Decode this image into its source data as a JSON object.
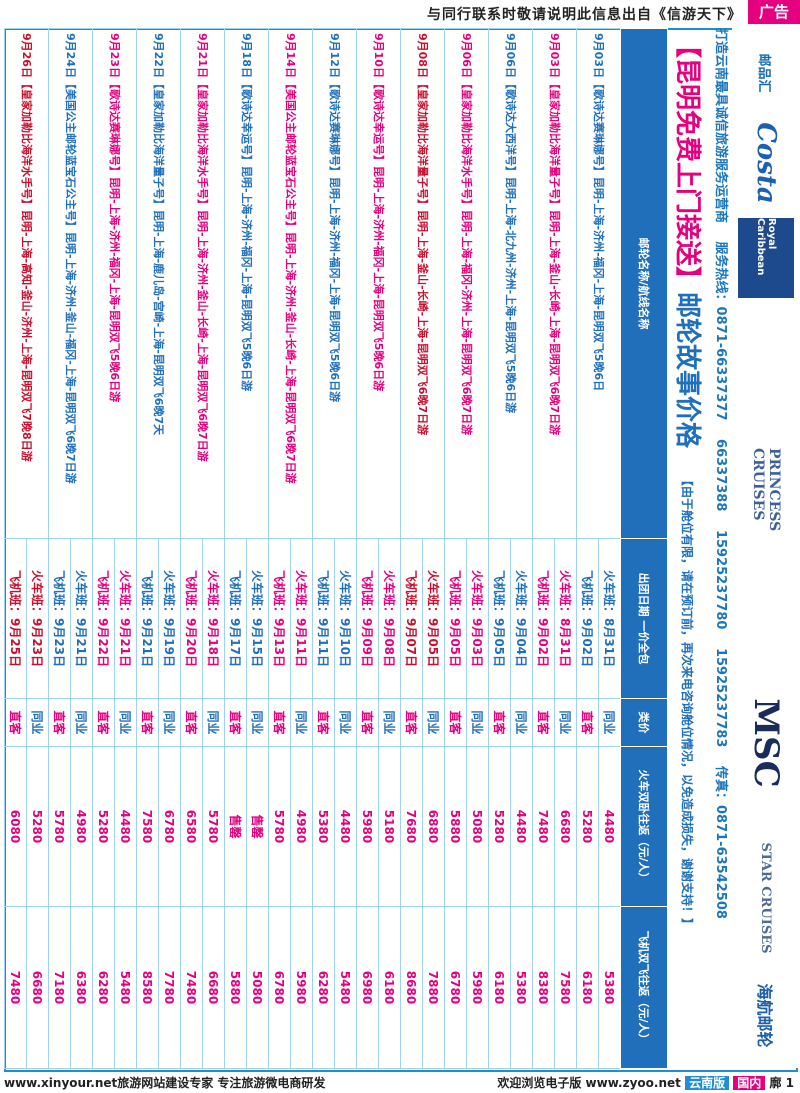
{
  "top_notice": "与同行联系时敬请说明此信息出自《信游天下》",
  "ad_label": "广告",
  "brands": {
    "youpinhui": "邮品汇",
    "costa": "Costa",
    "rc": "Royal Caribbean",
    "princess": "PRINCESS CRUISES",
    "msc": "MSC",
    "star": "STAR CRUISES",
    "hainan": "海航邮轮"
  },
  "contact": {
    "line1": "打造云南最具诚信旅游服务运营商",
    "service": "服务热线：0871-66337377",
    "p1": "66337388",
    "p2": "15925237780",
    "p3": "15925237783",
    "fax": "传真：0871-63542508"
  },
  "headline": {
    "part1": "【昆明免费上门接送】",
    "part2": "邮轮故事价格",
    "note": "【由于舱位有限，请在预订前，再次来电咨询舱位情况，以免造成损失，谢谢支持！】"
  },
  "table": {
    "headers": [
      "邮轮名称/航线名称",
      "出团日期 一价全包",
      "类价",
      "火车双卧往返（元/人）",
      "飞机双飞往返（元/人）"
    ],
    "rows": [
      {
        "name": "9月03日【歌诗达赛琳娜号】昆明-上海-济州-福冈-上海-昆明双飞5晚6日",
        "color": "c-blue",
        "dates": [
          "火车班：8月31日",
          "飞机班：9月02日"
        ],
        "train": [
          "4480",
          "5280"
        ],
        "plane": [
          "5380",
          "6180"
        ]
      },
      {
        "name": "9月03日【皇家加勒比海洋量子号】昆明-上海-釜山-长崎-上海-昆明双飞6晚7日游",
        "color": "c-pink",
        "dates": [
          "火车班：8月31日",
          "飞机班：9月02日"
        ],
        "train": [
          "6680",
          "7480"
        ],
        "plane": [
          "7580",
          "8380"
        ]
      },
      {
        "name": "9月06日【歌诗达大西洋号】昆明-上海-北九州-济州-上海-昆明双飞5晚6日游",
        "color": "c-blue",
        "dates": [
          "火车班：9月04日",
          "飞机班：9月05日"
        ],
        "train": [
          "4480",
          "5280"
        ],
        "plane": [
          "5380",
          "6180"
        ]
      },
      {
        "name": "9月06日【皇家加勒比海洋水手号】昆明-上海-福冈-济州-上海-昆明双飞6晚7日游",
        "color": "c-pink",
        "dates": [
          "火车班：9月03日",
          "飞机班：9月05日"
        ],
        "train": [
          "5080",
          "5880"
        ],
        "plane": [
          "5980",
          "6780"
        ]
      },
      {
        "name": "9月08日【皇家加勒比海洋量子号】昆明-上海-釜山-长崎-上海-昆明双飞6晚7日游",
        "color": "c-red",
        "dates": [
          "火车班：9月05日",
          "飞机班：9月07日"
        ],
        "train": [
          "6880",
          "7680"
        ],
        "plane": [
          "7880",
          "8680"
        ]
      },
      {
        "name": "9月10日【歌诗达幸运号】昆明-上海-济州-福冈-上海-昆明双飞5晚6日游",
        "color": "c-pink",
        "dates": [
          "火车班：9月08日",
          "飞机班：9月09日"
        ],
        "train": [
          "5180",
          "5980"
        ],
        "plane": [
          "6180",
          "6980"
        ]
      },
      {
        "name": "9月12日【歌诗达赛琳娜号】昆明-上海-济州-福冈-上海-昆明双飞5晚6日游",
        "color": "c-blue",
        "dates": [
          "火车班：9月10日",
          "飞机班：9月11日"
        ],
        "train": [
          "4480",
          "5380"
        ],
        "plane": [
          "5480",
          "6280"
        ]
      },
      {
        "name": "9月14日【美国公主邮轮蓝宝石公主号】昆明-上海-济州-釜山-长崎-上海-昆明双飞6晚7日游",
        "color": "c-pink",
        "dates": [
          "火车班：9月11日",
          "飞机班：9月13日"
        ],
        "train": [
          "4980",
          "5780"
        ],
        "plane": [
          "5980",
          "6780"
        ]
      },
      {
        "name": "9月18日【歌诗达幸运号】昆明-上海-济州-福冈-上海-昆明双飞5晚6日游",
        "color": "c-blue",
        "dates": [
          "火车班：9月15日",
          "飞机班：9月17日"
        ],
        "train": [
          "售罄",
          "售罄"
        ],
        "plane": [
          "5080",
          "5880"
        ]
      },
      {
        "name": "9月21日【皇家加勒比海洋水手号】昆明-上海-济州-釜山-长崎-上海-昆明双飞6晚7日游",
        "color": "c-pink",
        "dates": [
          "火车班：9月18日",
          "飞机班：9月20日"
        ],
        "train": [
          "5780",
          "6580"
        ],
        "plane": [
          "6680",
          "7480"
        ]
      },
      {
        "name": "9月22日【皇家加勒比海洋量子号】昆明-上海-鹿儿岛-宫崎-上海-昆明双飞6晚7天",
        "color": "c-blue",
        "dates": [
          "火车班：9月19日",
          "飞机班：9月21日"
        ],
        "train": [
          "6780",
          "7580"
        ],
        "plane": [
          "7780",
          "8580"
        ]
      },
      {
        "name": "9月23日【歌诗达赛琳娜号】昆明-上海-济州-福冈-上海-昆明双飞5晚6日游",
        "color": "c-pink",
        "dates": [
          "火车班：9月21日",
          "飞机班：9月22日"
        ],
        "train": [
          "4480",
          "5280"
        ],
        "plane": [
          "5480",
          "6280"
        ]
      },
      {
        "name": "9月24日【美国公主邮轮蓝宝石公主号】昆明-上海-济州-釜山-福冈-上海-昆明双飞6晚7日游",
        "color": "c-blue",
        "dates": [
          "火车班：9月21日",
          "飞机班：9月23日"
        ],
        "train": [
          "4980",
          "5780"
        ],
        "plane": [
          "6380",
          "7180"
        ]
      },
      {
        "name": "9月26日【皇家加勒比海洋水手号】昆明-上海-高知-釜山-济州-上海-昆明双飞7晚8日游",
        "color": "c-red",
        "dates": [
          "火车班：9月23日",
          "飞机班：9月25日"
        ],
        "train": [
          "5280",
          "6080"
        ],
        "plane": [
          "6680",
          "7480"
        ]
      }
    ],
    "price_type": [
      "同业",
      "直客"
    ]
  },
  "footer": {
    "left": "www.xinyour.net旅游网站建设专家  专注旅游微电商研发",
    "right_pre": "欢迎浏览电子版  www.zyoo.net",
    "yn": "云南版",
    "gn": "国内",
    "page": "廓 1"
  },
  "colors": {
    "accent_blue": "#1f6fba",
    "accent_pink": "#e4007f",
    "frame": "#1f8fd0"
  }
}
